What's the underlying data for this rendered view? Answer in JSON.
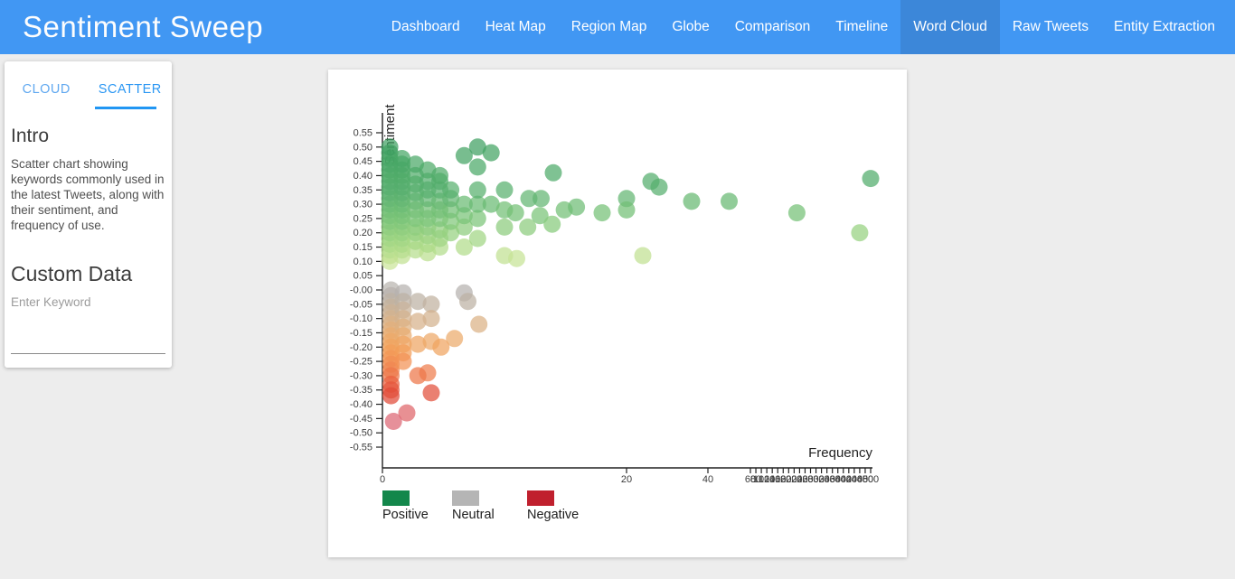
{
  "app": {
    "title": "Sentiment Sweep"
  },
  "theme": {
    "nav_bg": "#4197f3",
    "nav_active": "#3c87d9",
    "tab_accent": "#2196f3",
    "page_bg": "#ededed",
    "axis_color": "#222222",
    "tick_label_color": "#3c3c3c"
  },
  "nav": {
    "items": [
      {
        "label": "Dashboard",
        "active": false
      },
      {
        "label": "Heat Map",
        "active": false
      },
      {
        "label": "Region Map",
        "active": false
      },
      {
        "label": "Globe",
        "active": false
      },
      {
        "label": "Comparison",
        "active": false
      },
      {
        "label": "Timeline",
        "active": false
      },
      {
        "label": "Word Cloud",
        "active": true
      },
      {
        "label": "Raw Tweets",
        "active": false
      },
      {
        "label": "Entity Extraction",
        "active": false
      }
    ]
  },
  "sidebar": {
    "tabs": [
      {
        "label": "CLOUD",
        "active": false
      },
      {
        "label": "SCATTER",
        "active": true
      }
    ],
    "intro_title": "Intro",
    "intro_text": "Scatter chart showing keywords commonly used in the latest Tweets, along with their sentiment, and frequency of use.",
    "custom_data_title": "Custom Data",
    "keyword_placeholder": "Enter Keyword"
  },
  "chart_data": {
    "type": "scatter",
    "xlabel": "Frequency",
    "ylabel": "Sentiment",
    "ylim": [
      -0.55,
      0.55
    ],
    "grid": false,
    "legend_position": "bottom-left",
    "y_tick_labels": [
      "0.55",
      "0.50",
      "0.45",
      "0.40",
      "0.35",
      "0.30",
      "0.25",
      "0.20",
      "0.15",
      "0.10",
      "0.05",
      "-0.00",
      "-0.05",
      "-0.10",
      "-0.15",
      "-0.20",
      "-0.25",
      "-0.30",
      "-0.35",
      "-0.40",
      "-0.45",
      "-0.50",
      "-0.55"
    ],
    "x_tick_values": [
      0,
      20,
      40,
      60,
      80,
      100,
      120,
      140,
      160,
      180,
      200,
      220,
      240,
      260,
      280,
      300,
      320,
      340,
      360,
      380,
      400,
      420,
      440,
      460,
      480,
      500
    ],
    "x_scale_anchors": [
      [
        0,
        0
      ],
      [
        20,
        270
      ],
      [
        40,
        360
      ],
      [
        60,
        407
      ],
      [
        500,
        540
      ]
    ],
    "legend": [
      {
        "label": "Positive",
        "color": "#13874b"
      },
      {
        "label": "Neutral",
        "color": "#b5b5b5"
      },
      {
        "label": "Negative",
        "color": "#c0202e"
      }
    ],
    "point_radius": 9.5,
    "point_opacity": 0.72,
    "color_stops": [
      [
        -0.55,
        "#c94b60"
      ],
      [
        -0.47,
        "#dc6577"
      ],
      [
        -0.42,
        "#e06565"
      ],
      [
        -0.37,
        "#e04a38"
      ],
      [
        -0.33,
        "#e95f3e"
      ],
      [
        -0.28,
        "#f0854f"
      ],
      [
        -0.22,
        "#f39d58"
      ],
      [
        -0.17,
        "#ecab6b"
      ],
      [
        -0.11,
        "#d7b28a"
      ],
      [
        -0.06,
        "#c4b29b"
      ],
      [
        -0.015,
        "#b5b0ae"
      ],
      [
        0.015,
        "#bcb8ad"
      ],
      [
        0.05,
        "#d4dfa6"
      ],
      [
        0.1,
        "#cbe598"
      ],
      [
        0.17,
        "#a6d884"
      ],
      [
        0.25,
        "#7cc578"
      ],
      [
        0.35,
        "#57b06e"
      ],
      [
        0.45,
        "#48a766"
      ],
      [
        0.55,
        "#33985c"
      ]
    ],
    "points": [
      [
        0.6,
        0.1
      ],
      [
        0.6,
        0.12
      ],
      [
        0.6,
        0.14
      ],
      [
        0.6,
        0.16
      ],
      [
        0.6,
        0.18
      ],
      [
        0.6,
        0.2
      ],
      [
        0.6,
        0.22
      ],
      [
        0.6,
        0.24
      ],
      [
        0.6,
        0.26
      ],
      [
        0.6,
        0.28
      ],
      [
        0.6,
        0.3
      ],
      [
        0.6,
        0.32
      ],
      [
        0.6,
        0.34
      ],
      [
        0.6,
        0.36
      ],
      [
        0.6,
        0.38
      ],
      [
        0.6,
        0.4
      ],
      [
        0.6,
        0.42
      ],
      [
        0.6,
        0.44
      ],
      [
        0.6,
        0.46
      ],
      [
        0.6,
        0.48
      ],
      [
        0.6,
        0.5
      ],
      [
        1.6,
        0.12
      ],
      [
        1.6,
        0.14
      ],
      [
        1.6,
        0.16
      ],
      [
        1.6,
        0.18
      ],
      [
        1.6,
        0.2
      ],
      [
        1.6,
        0.22
      ],
      [
        1.6,
        0.24
      ],
      [
        1.6,
        0.26
      ],
      [
        1.6,
        0.28
      ],
      [
        1.6,
        0.3
      ],
      [
        1.6,
        0.32
      ],
      [
        1.6,
        0.34
      ],
      [
        1.6,
        0.36
      ],
      [
        1.6,
        0.38
      ],
      [
        1.6,
        0.4
      ],
      [
        1.6,
        0.42
      ],
      [
        1.6,
        0.44
      ],
      [
        1.6,
        0.46
      ],
      [
        2.7,
        0.14
      ],
      [
        2.7,
        0.17
      ],
      [
        2.7,
        0.2
      ],
      [
        2.7,
        0.22
      ],
      [
        2.7,
        0.25
      ],
      [
        2.7,
        0.28
      ],
      [
        2.7,
        0.31
      ],
      [
        2.7,
        0.34
      ],
      [
        2.7,
        0.37
      ],
      [
        2.7,
        0.4
      ],
      [
        2.7,
        0.44
      ],
      [
        3.7,
        0.13
      ],
      [
        3.7,
        0.16
      ],
      [
        3.7,
        0.19
      ],
      [
        3.7,
        0.22
      ],
      [
        3.7,
        0.25
      ],
      [
        3.7,
        0.28
      ],
      [
        3.7,
        0.32
      ],
      [
        3.7,
        0.35
      ],
      [
        3.7,
        0.38
      ],
      [
        3.7,
        0.42
      ],
      [
        4.7,
        0.15
      ],
      [
        4.7,
        0.18
      ],
      [
        4.7,
        0.21
      ],
      [
        4.7,
        0.25
      ],
      [
        4.7,
        0.28
      ],
      [
        4.7,
        0.31
      ],
      [
        4.7,
        0.35
      ],
      [
        4.7,
        0.38
      ],
      [
        4.7,
        0.4
      ],
      [
        5.6,
        0.2
      ],
      [
        5.6,
        0.24
      ],
      [
        5.6,
        0.28
      ],
      [
        5.6,
        0.32
      ],
      [
        5.6,
        0.35
      ],
      [
        6.7,
        0.15
      ],
      [
        6.7,
        0.22
      ],
      [
        6.7,
        0.26
      ],
      [
        6.7,
        0.3
      ],
      [
        6.7,
        0.47
      ],
      [
        7.8,
        0.18
      ],
      [
        7.8,
        0.25
      ],
      [
        7.8,
        0.3
      ],
      [
        7.8,
        0.35
      ],
      [
        7.8,
        0.43
      ],
      [
        7.8,
        0.5
      ],
      [
        8.9,
        0.3
      ],
      [
        8.9,
        0.48
      ],
      [
        10,
        0.12
      ],
      [
        10,
        0.22
      ],
      [
        10,
        0.28
      ],
      [
        10,
        0.35
      ],
      [
        11,
        0.11
      ],
      [
        10.9,
        0.27
      ],
      [
        12,
        0.32
      ],
      [
        13,
        0.32
      ],
      [
        11.9,
        0.22
      ],
      [
        12.9,
        0.26
      ],
      [
        13.9,
        0.23
      ],
      [
        14,
        0.41
      ],
      [
        14.9,
        0.28
      ],
      [
        15.9,
        0.29
      ],
      [
        18,
        0.27
      ],
      [
        20,
        0.32
      ],
      [
        20,
        0.28
      ],
      [
        24,
        0.12
      ],
      [
        26,
        0.38
      ],
      [
        28,
        0.36
      ],
      [
        36,
        0.31
      ],
      [
        50,
        0.31
      ],
      [
        230,
        0.27
      ],
      [
        460,
        0.2
      ],
      [
        500,
        0.39
      ],
      [
        0.7,
        -0.0
      ],
      [
        0.7,
        -0.02
      ],
      [
        0.7,
        -0.04
      ],
      [
        0.7,
        -0.06
      ],
      [
        0.7,
        -0.08
      ],
      [
        0.7,
        -0.1
      ],
      [
        0.7,
        -0.12
      ],
      [
        0.7,
        -0.14
      ],
      [
        0.7,
        -0.16
      ],
      [
        0.7,
        -0.18
      ],
      [
        0.7,
        -0.2
      ],
      [
        0.7,
        -0.22
      ],
      [
        0.7,
        -0.24
      ],
      [
        0.7,
        -0.26
      ],
      [
        0.7,
        -0.28
      ],
      [
        0.7,
        -0.3
      ],
      [
        0.7,
        -0.33
      ],
      [
        0.7,
        -0.35
      ],
      [
        0.7,
        -0.37
      ],
      [
        1.7,
        -0.01
      ],
      [
        1.7,
        -0.04
      ],
      [
        1.7,
        -0.07
      ],
      [
        1.7,
        -0.1
      ],
      [
        1.7,
        -0.13
      ],
      [
        1.7,
        -0.16
      ],
      [
        1.7,
        -0.19
      ],
      [
        1.7,
        -0.22
      ],
      [
        1.7,
        -0.25
      ],
      [
        2.9,
        -0.04
      ],
      [
        4,
        -0.05
      ],
      [
        6.7,
        -0.01
      ],
      [
        7,
        -0.04
      ],
      [
        2.9,
        -0.11
      ],
      [
        4,
        -0.1
      ],
      [
        7.9,
        -0.12
      ],
      [
        5.9,
        -0.17
      ],
      [
        2.9,
        -0.19
      ],
      [
        4,
        -0.18
      ],
      [
        4.8,
        -0.2
      ],
      [
        3.7,
        -0.29
      ],
      [
        2.9,
        -0.3
      ],
      [
        4,
        -0.36
      ],
      [
        2,
        -0.43
      ],
      [
        0.9,
        -0.46
      ]
    ]
  }
}
